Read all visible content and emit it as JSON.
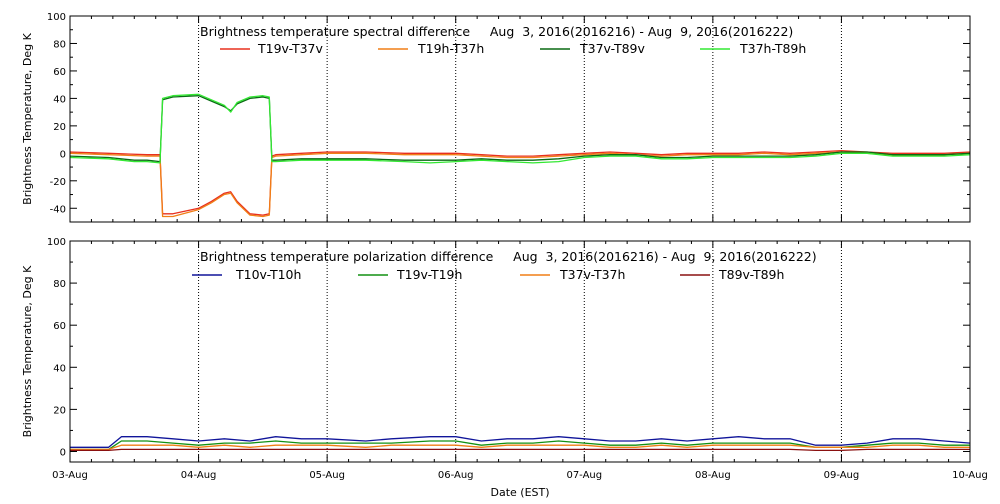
{
  "chart_data": [
    {
      "type": "line",
      "title": "Brightness temperature spectral difference     Aug  3, 2016(2016216) - Aug  9, 2016(2016222)",
      "xlabel": "",
      "ylabel": "Brightness Temperature, Deg K",
      "ylim": [
        -50,
        100
      ],
      "yticks": [
        -40,
        -20,
        0,
        20,
        40,
        60,
        80,
        100
      ],
      "xlim": [
        0,
        7
      ],
      "x_unit": "days since 03-Aug",
      "xgrid": true,
      "legend_position": "top",
      "series": [
        {
          "name": "T19v-T37v",
          "color": "#e8301e",
          "x": [
            0,
            0.3,
            0.6,
            0.7,
            0.72,
            0.8,
            1.0,
            1.1,
            1.2,
            1.25,
            1.3,
            1.4,
            1.5,
            1.55,
            1.57,
            1.6,
            1.8,
            2.0,
            2.3,
            2.6,
            2.8,
            3.0,
            3.2,
            3.4,
            3.6,
            3.8,
            4.0,
            4.2,
            4.4,
            4.6,
            4.8,
            5.0,
            5.2,
            5.4,
            5.6,
            5.8,
            6.0,
            6.2,
            6.4,
            6.6,
            6.8,
            7.0
          ],
          "y": [
            1,
            0,
            -1,
            -1,
            -44,
            -44,
            -40,
            -35,
            -29,
            -28,
            -35,
            -44,
            -45,
            -44,
            -2,
            -1,
            0,
            1,
            1,
            0,
            0,
            0,
            -1,
            -2,
            -2,
            -1,
            0,
            1,
            0,
            -1,
            0,
            0,
            0,
            1,
            0,
            1,
            2,
            1,
            0,
            0,
            0,
            1
          ]
        },
        {
          "name": "T19h-T37h",
          "color": "#f07f16",
          "x": [
            0,
            0.3,
            0.6,
            0.7,
            0.72,
            0.8,
            1.0,
            1.1,
            1.2,
            1.25,
            1.3,
            1.4,
            1.5,
            1.55,
            1.57,
            1.6,
            1.8,
            2.0,
            2.3,
            2.6,
            2.8,
            3.0,
            3.2,
            3.4,
            3.6,
            3.8,
            4.0,
            4.2,
            4.4,
            4.6,
            4.8,
            5.0,
            5.2,
            5.4,
            5.6,
            5.8,
            6.0,
            6.2,
            6.4,
            6.6,
            6.8,
            7.0
          ],
          "y": [
            0,
            -1,
            -2,
            -2,
            -46,
            -46,
            -41,
            -36,
            -30,
            -29,
            -36,
            -45,
            -46,
            -45,
            -3,
            -2,
            -1,
            0,
            0,
            -1,
            -1,
            -1,
            -2,
            -3,
            -3,
            -2,
            -1,
            0,
            -1,
            -2,
            -1,
            -1,
            -1,
            0,
            -1,
            0,
            1,
            0,
            -1,
            -1,
            -1,
            0
          ]
        },
        {
          "name": "T37v-T89v",
          "color": "#0a6a14",
          "x": [
            0,
            0.3,
            0.5,
            0.6,
            0.7,
            0.72,
            0.8,
            1.0,
            1.1,
            1.2,
            1.25,
            1.3,
            1.4,
            1.5,
            1.55,
            1.57,
            1.6,
            1.8,
            2.0,
            2.3,
            2.6,
            2.8,
            3.0,
            3.2,
            3.4,
            3.6,
            3.8,
            4.0,
            4.2,
            4.4,
            4.6,
            4.8,
            5.0,
            5.2,
            5.4,
            5.6,
            5.8,
            6.0,
            6.2,
            6.4,
            6.6,
            6.8,
            7.0
          ],
          "y": [
            -2,
            -3,
            -5,
            -5,
            -6,
            39,
            41,
            42,
            38,
            34,
            31,
            36,
            40,
            41,
            40,
            -5,
            -5,
            -4,
            -4,
            -4,
            -5,
            -5,
            -5,
            -4,
            -5,
            -5,
            -4,
            -2,
            -1,
            -1,
            -3,
            -3,
            -2,
            -2,
            -2,
            -2,
            -1,
            1,
            1,
            -1,
            -1,
            -1,
            0
          ]
        },
        {
          "name": "T37h-T89h",
          "color": "#33e833",
          "x": [
            0,
            0.3,
            0.5,
            0.6,
            0.7,
            0.72,
            0.8,
            1.0,
            1.1,
            1.2,
            1.25,
            1.3,
            1.4,
            1.5,
            1.55,
            1.57,
            1.6,
            1.8,
            2.0,
            2.3,
            2.6,
            2.8,
            3.0,
            3.2,
            3.4,
            3.6,
            3.8,
            4.0,
            4.2,
            4.4,
            4.6,
            4.8,
            5.0,
            5.2,
            5.4,
            5.6,
            5.8,
            6.0,
            6.2,
            6.4,
            6.6,
            6.8,
            7.0
          ],
          "y": [
            -3,
            -4,
            -6,
            -6,
            -7,
            40,
            42,
            43,
            39,
            35,
            30,
            37,
            41,
            42,
            41,
            -6,
            -6,
            -5,
            -5,
            -5,
            -6,
            -7,
            -6,
            -5,
            -6,
            -7,
            -6,
            -3,
            -2,
            -2,
            -4,
            -4,
            -3,
            -3,
            -3,
            -3,
            -2,
            0,
            0,
            -2,
            -2,
            -2,
            -1
          ]
        }
      ]
    },
    {
      "type": "line",
      "title": "Brightness temperature polarization difference     Aug  3, 2016(2016216) - Aug  9, 2016(2016222)",
      "xlabel": "Date (EST)",
      "ylabel": "Brightness Temperature, Deg K",
      "ylim": [
        -5,
        100
      ],
      "yticks": [
        0,
        20,
        40,
        60,
        80,
        100
      ],
      "xlim": [
        0,
        7
      ],
      "x_unit": "days since 03-Aug",
      "xticks": [
        "03-Aug",
        "04-Aug",
        "05-Aug",
        "06-Aug",
        "07-Aug",
        "08-Aug",
        "09-Aug",
        "10-Aug"
      ],
      "xgrid": true,
      "legend_position": "top",
      "series": [
        {
          "name": "T10v-T10h",
          "color": "#10159a",
          "x": [
            0,
            0.3,
            0.4,
            0.6,
            0.8,
            1.0,
            1.2,
            1.4,
            1.6,
            1.8,
            2.0,
            2.3,
            2.5,
            2.8,
            3.0,
            3.2,
            3.4,
            3.6,
            3.8,
            4.0,
            4.2,
            4.4,
            4.6,
            4.8,
            5.0,
            5.2,
            5.4,
            5.6,
            5.8,
            6.0,
            6.2,
            6.4,
            6.6,
            6.8,
            7.0
          ],
          "y": [
            2,
            2,
            7,
            7,
            6,
            5,
            6,
            5,
            7,
            6,
            6,
            5,
            6,
            7,
            7,
            5,
            6,
            6,
            7,
            6,
            5,
            5,
            6,
            5,
            6,
            7,
            6,
            6,
            3,
            3,
            4,
            6,
            6,
            5,
            4
          ]
        },
        {
          "name": "T19v-T19h",
          "color": "#129012",
          "x": [
            0,
            0.3,
            0.4,
            0.6,
            0.8,
            1.0,
            1.2,
            1.4,
            1.6,
            1.8,
            2.0,
            2.3,
            2.5,
            2.8,
            3.0,
            3.2,
            3.4,
            3.6,
            3.8,
            4.0,
            4.2,
            4.4,
            4.6,
            4.8,
            5.0,
            5.2,
            5.4,
            5.6,
            5.8,
            6.0,
            6.2,
            6.4,
            6.6,
            6.8,
            7.0
          ],
          "y": [
            1,
            1,
            5,
            5,
            4,
            3,
            4,
            4,
            5,
            4,
            4,
            4,
            4,
            5,
            5,
            3,
            4,
            4,
            5,
            4,
            3,
            3,
            4,
            3,
            4,
            4,
            4,
            4,
            2,
            2,
            3,
            4,
            4,
            3,
            3
          ]
        },
        {
          "name": "T37v-T37h",
          "color": "#f07f16",
          "x": [
            0,
            0.3,
            0.4,
            0.6,
            0.8,
            1.0,
            1.2,
            1.4,
            1.6,
            1.8,
            2.0,
            2.3,
            2.5,
            2.8,
            3.0,
            3.2,
            3.4,
            3.6,
            3.8,
            4.0,
            4.2,
            4.4,
            4.6,
            4.8,
            5.0,
            5.2,
            5.4,
            5.6,
            5.8,
            6.0,
            6.2,
            6.4,
            6.6,
            6.8,
            7.0
          ],
          "y": [
            1,
            1,
            3,
            3,
            3,
            2,
            3,
            2,
            3,
            3,
            3,
            2,
            3,
            3,
            3,
            2,
            3,
            3,
            3,
            3,
            2,
            2,
            3,
            2,
            3,
            3,
            3,
            3,
            2,
            2,
            2,
            3,
            3,
            2,
            2
          ]
        },
        {
          "name": "T89v-T89h",
          "color": "#8a1010",
          "x": [
            0,
            0.3,
            0.4,
            0.6,
            0.8,
            1.0,
            1.2,
            1.4,
            1.6,
            1.8,
            2.0,
            2.3,
            2.5,
            2.8,
            3.0,
            3.2,
            3.4,
            3.6,
            3.8,
            4.0,
            4.2,
            4.4,
            4.6,
            4.8,
            5.0,
            5.2,
            5.4,
            5.6,
            5.8,
            6.0,
            6.2,
            6.4,
            6.6,
            6.8,
            7.0
          ],
          "y": [
            0.5,
            0.5,
            1,
            1,
            1,
            1,
            1,
            1,
            1,
            1,
            1,
            1,
            1,
            1,
            1,
            1,
            1,
            1,
            1,
            1,
            1,
            1,
            1,
            1,
            1,
            1,
            1,
            1,
            0.5,
            0.5,
            1,
            1,
            1,
            1,
            1
          ]
        }
      ]
    }
  ]
}
